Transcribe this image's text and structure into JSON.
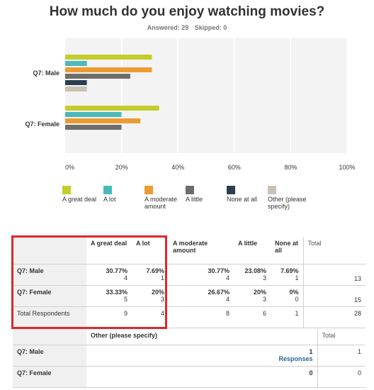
{
  "title": "How much do you enjoy watching movies?",
  "answered_label": "Answered: 29",
  "skipped_label": "Skipped: 0",
  "colors": {
    "great_deal": "#c3cd2b",
    "a_lot": "#4bb9b8",
    "moderate": "#ec9b33",
    "little": "#6d6e6a",
    "none": "#2b3e50",
    "other": "#c8c2b4",
    "highlight": "#e0272b"
  },
  "chart_data": {
    "type": "bar",
    "orientation": "horizontal",
    "categories": [
      "Q7: Male",
      "Q7: Female"
    ],
    "series": [
      {
        "name": "A great deal",
        "values": [
          30.77,
          33.33
        ]
      },
      {
        "name": "A lot",
        "values": [
          7.69,
          20
        ]
      },
      {
        "name": "A moderate amount",
        "values": [
          30.77,
          26.67
        ]
      },
      {
        "name": "A little",
        "values": [
          23.08,
          20
        ]
      },
      {
        "name": "None at all",
        "values": [
          7.69,
          0
        ]
      },
      {
        "name": "Other (please specify)",
        "values": [
          7.69,
          0
        ]
      }
    ],
    "xlim": [
      0,
      100
    ],
    "x_ticks": [
      "0%",
      "20%",
      "40%",
      "60%",
      "80%",
      "100%"
    ],
    "grid": true,
    "legend": "bottom"
  },
  "legend_items": [
    {
      "label": "A great deal",
      "color_key": "great_deal"
    },
    {
      "label": "A lot",
      "color_key": "a_lot"
    },
    {
      "label": "A moderate amount",
      "color_key": "moderate"
    },
    {
      "label": "A little",
      "color_key": "little"
    },
    {
      "label": "None at all",
      "color_key": "none"
    },
    {
      "label": "Other (please specify)",
      "color_key": "other"
    }
  ],
  "table": {
    "headers": [
      "A great deal",
      "A lot",
      "A moderate amount",
      "A little",
      "None at all",
      "Total"
    ],
    "rows": [
      {
        "label": "Q7: Male",
        "cells": [
          {
            "pct": "30.77%",
            "count": "4"
          },
          {
            "pct": "7.69%",
            "count": "1"
          },
          {
            "pct": "30.77%",
            "count": "4"
          },
          {
            "pct": "23.08%",
            "count": "3"
          },
          {
            "pct": "7.69%",
            "count": "1"
          }
        ],
        "total": "13"
      },
      {
        "label": "Q7: Female",
        "cells": [
          {
            "pct": "33.33%",
            "count": "5"
          },
          {
            "pct": "20%",
            "count": "3"
          },
          {
            "pct": "26.67%",
            "count": "4"
          },
          {
            "pct": "20%",
            "count": "3"
          },
          {
            "pct": "0%",
            "count": "0"
          }
        ],
        "total": "15"
      }
    ],
    "total_row": {
      "label": "Total Respondents",
      "values": [
        "9",
        "4",
        "8",
        "6",
        "1"
      ],
      "total": "28"
    }
  },
  "other_table": {
    "header": "Other (please specify)",
    "total_header": "Total",
    "rows": [
      {
        "label": "Q7: Male",
        "count": "1",
        "link": "Responses",
        "total": "1"
      },
      {
        "label": "Q7: Female",
        "count": "0",
        "link": "",
        "total": "0"
      }
    ]
  }
}
